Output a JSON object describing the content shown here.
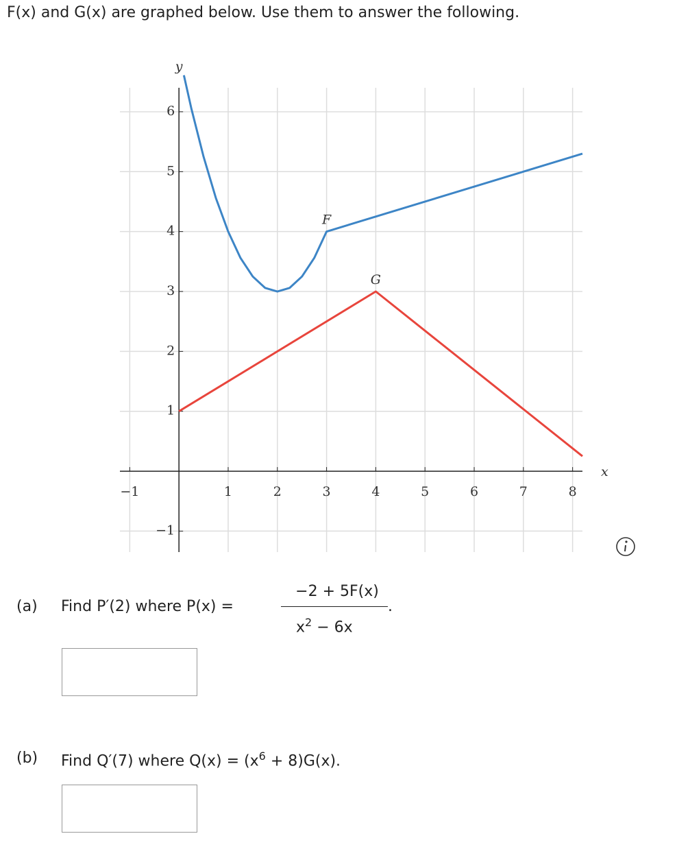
{
  "header": {
    "title": "F(x) and G(x) are graphed below. Use them to answer the following."
  },
  "chart_data": {
    "type": "line",
    "x_label": "x",
    "y_label": "y",
    "xlim": [
      -1.2,
      8.2
    ],
    "ylim": [
      -1.35,
      6.4
    ],
    "xticks": [
      {
        "value": -1,
        "label": "−1"
      },
      1,
      2,
      3,
      4,
      5,
      6,
      7,
      8
    ],
    "yticks": [
      {
        "value": -1,
        "label": "−1"
      },
      1,
      2,
      3,
      4,
      5,
      6
    ],
    "grid": true,
    "series": [
      {
        "name": "F",
        "color": "#3d85c6",
        "x": [
          0.1,
          0.25,
          0.5,
          0.75,
          1,
          1.25,
          1.5,
          1.75,
          2,
          2.25,
          2.5,
          2.75,
          3,
          8.2
        ],
        "values": [
          6.61,
          6.06,
          5.25,
          4.56,
          4,
          3.56,
          3.25,
          3.06,
          3,
          3.06,
          3.25,
          3.56,
          4,
          5.3
        ]
      },
      {
        "name": "G",
        "color": "#e8453c",
        "x": [
          0,
          4,
          8.2
        ],
        "values": [
          1,
          3,
          0.25
        ]
      }
    ]
  },
  "parts": [
    {
      "label": "(a)",
      "prompt": "Find P′(2) where P(x) =",
      "numerator": "−2 + 5F(x)",
      "denominator_base": "x",
      "denominator_exponent": "2",
      "denominator_rest": "− 6x",
      "end": "."
    },
    {
      "label": "(b)",
      "prompt": "Find Q′(7) where Q(x) = (x",
      "exponent": "6",
      "rest": "+ 8)G(x)."
    }
  ]
}
